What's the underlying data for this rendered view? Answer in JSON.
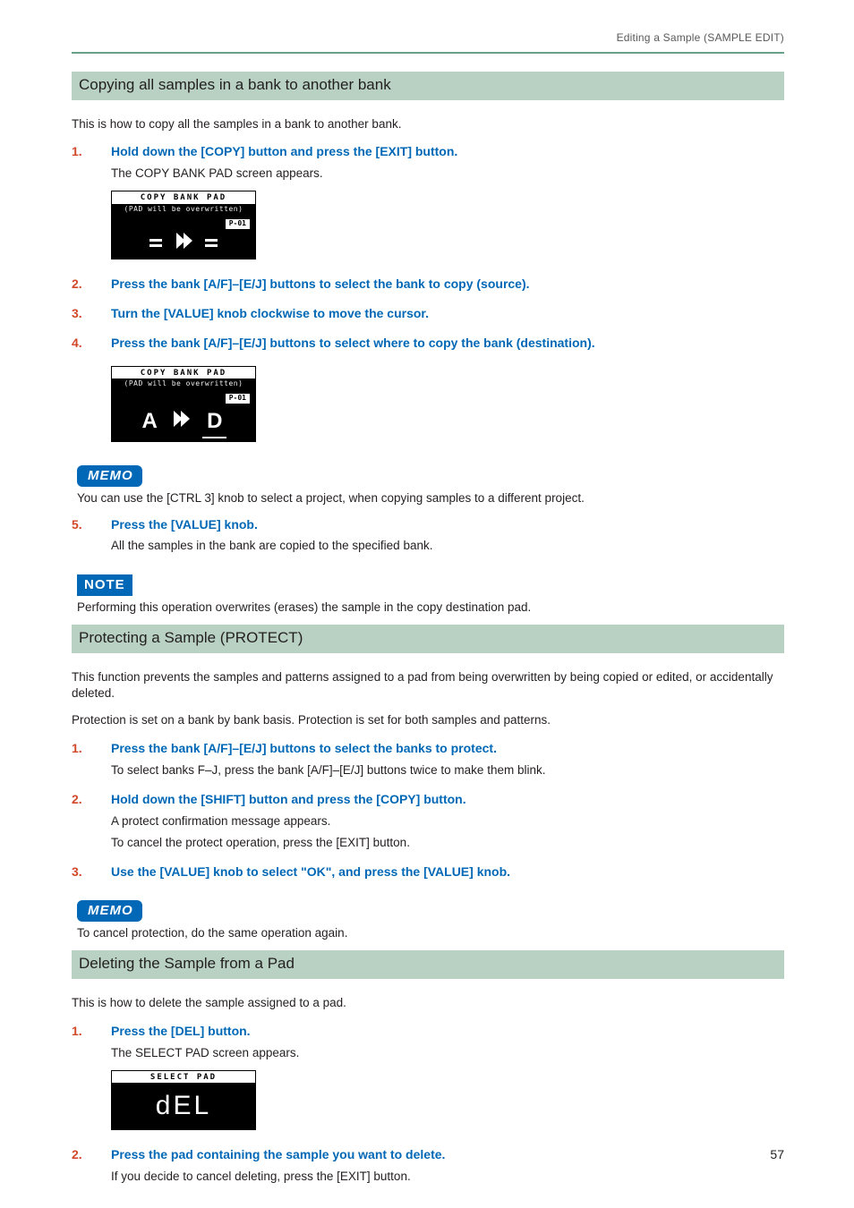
{
  "colors": {
    "accent_green": "#6aa088",
    "section_bg": "#b8d1c3",
    "step_number": "#d2492a",
    "step_head": "#0068b6",
    "badge_bg": "#0068b6",
    "text": "#231f20",
    "running_head": "#595959"
  },
  "running_head": "Editing a Sample (SAMPLE EDIT)",
  "page_number": "57",
  "badges": {
    "memo": "MEMO",
    "note": "NOTE"
  },
  "lcd": {
    "copy_bank_title": "COPY BANK PAD",
    "copy_bank_sub": "(PAD will be overwritten)",
    "project_label": "P-01",
    "select_pad_title": "SELECT PAD",
    "ab_src": "A",
    "ab_dst": "D",
    "del_text": "dEL"
  },
  "section1": {
    "title": "Copying all samples in a bank to another bank",
    "intro": "This is how to copy all the samples in a bank to another bank.",
    "steps": [
      {
        "num": "1.",
        "head": "Hold down the [COPY] button and press the [EXIT] button.",
        "desc": "The COPY BANK PAD screen appears."
      },
      {
        "num": "2.",
        "head": "Press the bank [A/F]–[E/J] buttons to select the bank to copy (source)."
      },
      {
        "num": "3.",
        "head": "Turn the [VALUE] knob clockwise to move the cursor."
      },
      {
        "num": "4.",
        "head": "Press the bank [A/F]–[E/J] buttons to select where to copy the bank (destination)."
      }
    ],
    "memo1": "You can use the [CTRL 3] knob to select a project, when copying samples to a different project.",
    "step5": {
      "num": "5.",
      "head": "Press the [VALUE] knob.",
      "desc": "All the samples in the bank are copied to the specified bank."
    },
    "note": "Performing this operation overwrites (erases) the sample in the copy destination pad."
  },
  "section2": {
    "title": "Protecting a Sample (PROTECT)",
    "intro1": "This function prevents the samples and patterns assigned to a pad from being overwritten by being copied or edited, or accidentally deleted.",
    "intro2": "Protection is set on a bank by bank basis. Protection is set for both samples and patterns.",
    "steps": [
      {
        "num": "1.",
        "head": "Press the bank [A/F]–[E/J] buttons to select the banks to protect.",
        "desc": "To select banks F–J, press the bank [A/F]–[E/J] buttons twice to make them blink."
      },
      {
        "num": "2.",
        "head": "Hold down the [SHIFT] button and press the [COPY] button.",
        "desc1": "A protect confirmation message appears.",
        "desc2": "To cancel the protect operation, press the [EXIT] button."
      },
      {
        "num": "3.",
        "head": "Use the [VALUE] knob to select \"OK\", and press the [VALUE] knob."
      }
    ],
    "memo": "To cancel protection, do the same operation again."
  },
  "section3": {
    "title": "Deleting the Sample from a Pad",
    "intro": "This is how to delete the sample assigned to a pad.",
    "steps": [
      {
        "num": "1.",
        "head": "Press the [DEL] button.",
        "desc": "The SELECT PAD screen appears."
      },
      {
        "num": "2.",
        "head": "Press the pad containing the sample you want to delete.",
        "desc": "If you decide to cancel deleting, press the [EXIT] button."
      }
    ]
  }
}
